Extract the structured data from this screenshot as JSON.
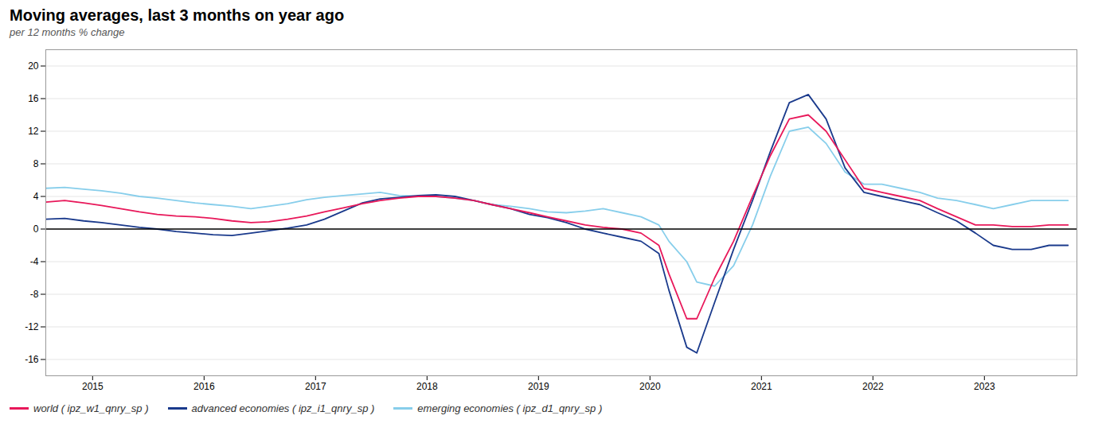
{
  "chart_data": {
    "type": "line",
    "title": "Moving averages, last 3 months on year ago",
    "subtitle": "per 12 months % change",
    "x": [
      2014.58,
      2014.75,
      2014.92,
      2015.08,
      2015.25,
      2015.42,
      2015.58,
      2015.75,
      2015.92,
      2016.08,
      2016.25,
      2016.42,
      2016.58,
      2016.75,
      2016.92,
      2017.08,
      2017.25,
      2017.42,
      2017.58,
      2017.75,
      2017.92,
      2018.08,
      2018.25,
      2018.42,
      2018.58,
      2018.75,
      2018.92,
      2019.08,
      2019.25,
      2019.42,
      2019.58,
      2019.75,
      2019.92,
      2020.08,
      2020.17,
      2020.33,
      2020.42,
      2020.58,
      2020.75,
      2020.92,
      2021.08,
      2021.25,
      2021.42,
      2021.58,
      2021.75,
      2021.92,
      2022.08,
      2022.25,
      2022.42,
      2022.58,
      2022.75,
      2022.92,
      2023.08,
      2023.25,
      2023.42,
      2023.58,
      2023.75
    ],
    "series": [
      {
        "name": "world  ( ipz_w1_qnry_sp )",
        "color": "#e8185a",
        "values": [
          3.3,
          3.5,
          3.2,
          2.9,
          2.5,
          2.1,
          1.8,
          1.6,
          1.5,
          1.3,
          1.0,
          0.8,
          0.9,
          1.2,
          1.6,
          2.1,
          2.6,
          3.1,
          3.5,
          3.8,
          4.0,
          4.0,
          3.8,
          3.5,
          3.0,
          2.5,
          2.0,
          1.5,
          1.0,
          0.5,
          0.2,
          0.0,
          -0.5,
          -2.0,
          -5.5,
          -11.0,
          -11.0,
          -6.0,
          -1.5,
          4.0,
          9.0,
          13.5,
          14.0,
          12.0,
          8.5,
          5.0,
          4.5,
          4.0,
          3.5,
          2.5,
          1.5,
          0.5,
          0.5,
          0.3,
          0.3,
          0.5,
          0.5
        ]
      },
      {
        "name": "advanced economies  ( ipz_i1_qnry_sp )",
        "color": "#1a3a8c",
        "values": [
          1.2,
          1.3,
          1.0,
          0.8,
          0.5,
          0.2,
          0.0,
          -0.3,
          -0.5,
          -0.7,
          -0.8,
          -0.5,
          -0.2,
          0.1,
          0.5,
          1.2,
          2.2,
          3.2,
          3.7,
          3.9,
          4.1,
          4.2,
          4.0,
          3.5,
          3.0,
          2.5,
          1.8,
          1.4,
          0.8,
          0.0,
          -0.5,
          -1.0,
          -1.5,
          -3.0,
          -7.5,
          -14.5,
          -15.2,
          -9.0,
          -2.5,
          3.5,
          9.5,
          15.5,
          16.5,
          13.5,
          7.5,
          4.5,
          4.0,
          3.5,
          3.0,
          2.0,
          1.0,
          -0.5,
          -2.0,
          -2.5,
          -2.5,
          -2.0,
          -2.0
        ]
      },
      {
        "name": "emerging economies  ( ipz_d1_qnry_sp )",
        "color": "#87ceeb",
        "values": [
          5.0,
          5.1,
          4.9,
          4.7,
          4.4,
          4.0,
          3.8,
          3.5,
          3.2,
          3.0,
          2.8,
          2.5,
          2.8,
          3.1,
          3.6,
          3.9,
          4.1,
          4.3,
          4.5,
          4.1,
          4.0,
          4.0,
          3.8,
          3.5,
          3.0,
          2.8,
          2.5,
          2.1,
          2.0,
          2.2,
          2.5,
          2.0,
          1.5,
          0.5,
          -1.5,
          -4.0,
          -6.5,
          -7.0,
          -4.5,
          0.5,
          6.5,
          12.0,
          12.5,
          10.5,
          7.0,
          5.5,
          5.5,
          5.0,
          4.5,
          3.8,
          3.5,
          3.0,
          2.5,
          3.0,
          3.5,
          3.5,
          3.5
        ]
      }
    ],
    "xlim": [
      2014.58,
      2023.83
    ],
    "xticks": [
      2015,
      2016,
      2017,
      2018,
      2019,
      2020,
      2021,
      2022,
      2023
    ],
    "ylim": [
      -18,
      22
    ],
    "yticks": [
      -16,
      -12,
      -8,
      -4,
      0,
      4,
      8,
      12,
      16,
      20
    ],
    "grid": true,
    "legend": "bottom"
  }
}
